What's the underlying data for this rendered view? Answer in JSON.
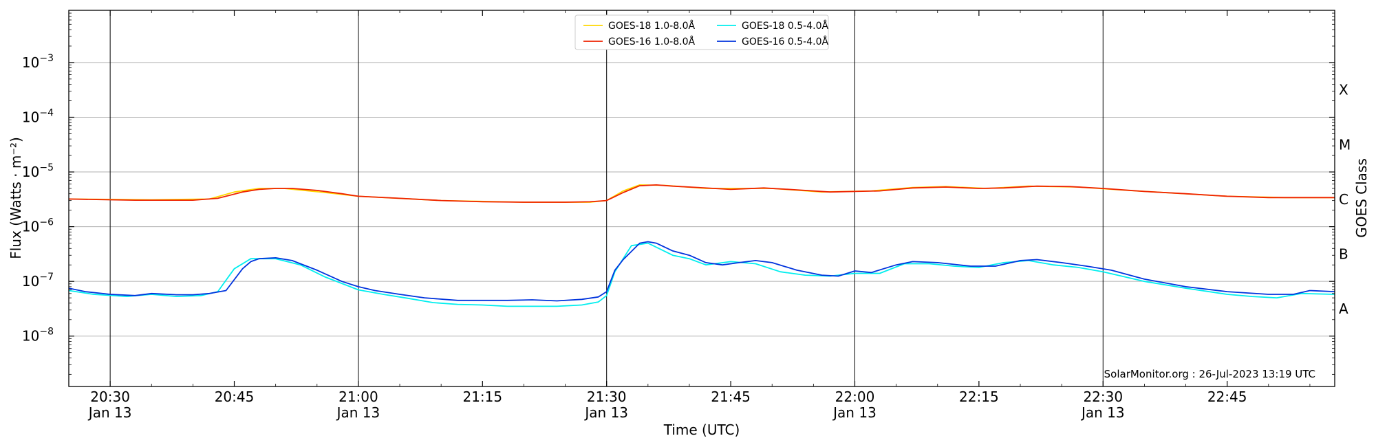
{
  "chart_data": {
    "type": "line",
    "title": "",
    "xlabel": "Time (UTC)",
    "ylabel": "Flux (Watts · m⁻²)",
    "y2label": "GOES Class",
    "yscale": "log",
    "ylim": [
      1.2e-09,
      0.009
    ],
    "xlim": [
      "20:25",
      "22:58"
    ],
    "grid": {
      "horizontal": true,
      "vertical_at_major_ticks": true
    },
    "legend_position": "upper center",
    "x_ticks": [
      {
        "time": "20:30",
        "line1": "20:30",
        "line2": "Jan 13",
        "major": true
      },
      {
        "time": "20:45",
        "line1": "20:45",
        "line2": "",
        "major": false
      },
      {
        "time": "21:00",
        "line1": "21:00",
        "line2": "Jan 13",
        "major": true
      },
      {
        "time": "21:15",
        "line1": "21:15",
        "line2": "",
        "major": false
      },
      {
        "time": "21:30",
        "line1": "21:30",
        "line2": "Jan 13",
        "major": true
      },
      {
        "time": "21:45",
        "line1": "21:45",
        "line2": "",
        "major": false
      },
      {
        "time": "22:00",
        "line1": "22:00",
        "line2": "Jan 13",
        "major": true
      },
      {
        "time": "22:15",
        "line1": "22:15",
        "line2": "",
        "major": false
      },
      {
        "time": "22:30",
        "line1": "22:30",
        "line2": "Jan 13",
        "major": true
      },
      {
        "time": "22:45",
        "line1": "22:45",
        "line2": "",
        "major": false
      }
    ],
    "y_ticks": [
      {
        "value": 1e-08,
        "base": "10",
        "exp": "−8"
      },
      {
        "value": 1e-07,
        "base": "10",
        "exp": "−7"
      },
      {
        "value": 1e-06,
        "base": "10",
        "exp": "−6"
      },
      {
        "value": 1e-05,
        "base": "10",
        "exp": "−5"
      },
      {
        "value": 0.0001,
        "base": "10",
        "exp": "−4"
      },
      {
        "value": 0.001,
        "base": "10",
        "exp": "−3"
      }
    ],
    "class_labels": [
      {
        "label": "A",
        "value": 3.16e-08
      },
      {
        "label": "B",
        "value": 3.16e-07
      },
      {
        "label": "C",
        "value": 3.16e-06
      },
      {
        "label": "M",
        "value": 3.16e-05
      },
      {
        "label": "X",
        "value": 0.000316
      }
    ],
    "series": [
      {
        "name": "GOES-18 1.0-8.0Å",
        "color": "#ffd700",
        "points": [
          [
            "20:25",
            3.2e-06
          ],
          [
            "20:35",
            3.1e-06
          ],
          [
            "20:42",
            3.2e-06
          ],
          [
            "20:45",
            4.3e-06
          ],
          [
            "20:48",
            5e-06
          ],
          [
            "20:51",
            5e-06
          ],
          [
            "20:56",
            4.2e-06
          ],
          [
            "21:00",
            3.6e-06
          ],
          [
            "21:10",
            3e-06
          ],
          [
            "21:20",
            2.8e-06
          ],
          [
            "21:28",
            2.8e-06
          ],
          [
            "21:30",
            3e-06
          ],
          [
            "21:32",
            4.5e-06
          ],
          [
            "21:34",
            5.8e-06
          ],
          [
            "21:37",
            5.7e-06
          ],
          [
            "21:42",
            5e-06
          ],
          [
            "21:50",
            5e-06
          ],
          [
            "21:56",
            4.3e-06
          ],
          [
            "22:02",
            4.5e-06
          ],
          [
            "22:07",
            5.2e-06
          ],
          [
            "22:11",
            5.4e-06
          ],
          [
            "22:16",
            5e-06
          ],
          [
            "22:21",
            5.5e-06
          ],
          [
            "22:27",
            5.3e-06
          ],
          [
            "22:33",
            4.6e-06
          ],
          [
            "22:45",
            3.6e-06
          ],
          [
            "22:52",
            3.4e-06
          ],
          [
            "22:58",
            3.4e-06
          ]
        ]
      },
      {
        "name": "GOES-16 1.0-8.0Å",
        "color": "#ee2200",
        "points": [
          [
            "20:25",
            3.2e-06
          ],
          [
            "20:30",
            3.1e-06
          ],
          [
            "20:33",
            3.05e-06
          ],
          [
            "20:40",
            3.05e-06
          ],
          [
            "20:43",
            3.3e-06
          ],
          [
            "20:46",
            4.3e-06
          ],
          [
            "20:48",
            4.8e-06
          ],
          [
            "20:50",
            5e-06
          ],
          [
            "20:52",
            5e-06
          ],
          [
            "20:55",
            4.6e-06
          ],
          [
            "20:58",
            4e-06
          ],
          [
            "21:00",
            3.6e-06
          ],
          [
            "21:05",
            3.3e-06
          ],
          [
            "21:10",
            3e-06
          ],
          [
            "21:15",
            2.85e-06
          ],
          [
            "21:20",
            2.8e-06
          ],
          [
            "21:25",
            2.8e-06
          ],
          [
            "21:28",
            2.85e-06
          ],
          [
            "21:30",
            3e-06
          ],
          [
            "21:32",
            4.2e-06
          ],
          [
            "21:34",
            5.6e-06
          ],
          [
            "21:36",
            5.8e-06
          ],
          [
            "21:38",
            5.5e-06
          ],
          [
            "21:41",
            5.2e-06
          ],
          [
            "21:45",
            4.8e-06
          ],
          [
            "21:49",
            5.1e-06
          ],
          [
            "21:53",
            4.7e-06
          ],
          [
            "21:57",
            4.3e-06
          ],
          [
            "22:00",
            4.4e-06
          ],
          [
            "22:03",
            4.5e-06
          ],
          [
            "22:07",
            5.1e-06
          ],
          [
            "22:11",
            5.3e-06
          ],
          [
            "22:15",
            5e-06
          ],
          [
            "22:18",
            5.1e-06
          ],
          [
            "22:22",
            5.5e-06
          ],
          [
            "22:26",
            5.4e-06
          ],
          [
            "22:30",
            5e-06
          ],
          [
            "22:35",
            4.4e-06
          ],
          [
            "22:40",
            4e-06
          ],
          [
            "22:45",
            3.6e-06
          ],
          [
            "22:50",
            3.4e-06
          ],
          [
            "22:55",
            3.4e-06
          ],
          [
            "22:58",
            3.4e-06
          ]
        ]
      },
      {
        "name": "GOES-18 0.5-4.0Å",
        "color": "#00eeee",
        "points": [
          [
            "20:25",
            6.8e-08
          ],
          [
            "20:28",
            5.8e-08
          ],
          [
            "20:32",
            5.3e-08
          ],
          [
            "20:35",
            5.8e-08
          ],
          [
            "20:38",
            5.3e-08
          ],
          [
            "20:41",
            5.5e-08
          ],
          [
            "20:43",
            6.5e-08
          ],
          [
            "20:45",
            1.7e-07
          ],
          [
            "20:47",
            2.6e-07
          ],
          [
            "20:50",
            2.6e-07
          ],
          [
            "20:53",
            2e-07
          ],
          [
            "20:56",
            1.2e-07
          ],
          [
            "21:00",
            7e-08
          ],
          [
            "21:03",
            5.8e-08
          ],
          [
            "21:06",
            4.9e-08
          ],
          [
            "21:09",
            4.1e-08
          ],
          [
            "21:12",
            3.8e-08
          ],
          [
            "21:15",
            3.7e-08
          ],
          [
            "21:18",
            3.5e-08
          ],
          [
            "21:21",
            3.5e-08
          ],
          [
            "21:24",
            3.5e-08
          ],
          [
            "21:27",
            3.7e-08
          ],
          [
            "21:29",
            4.2e-08
          ],
          [
            "21:30",
            5.5e-08
          ],
          [
            "21:31",
            1.5e-07
          ],
          [
            "21:33",
            4.5e-07
          ],
          [
            "21:35",
            5e-07
          ],
          [
            "21:38",
            3e-07
          ],
          [
            "21:40",
            2.6e-07
          ],
          [
            "21:42",
            2e-07
          ],
          [
            "21:45",
            2.3e-07
          ],
          [
            "21:48",
            2.1e-07
          ],
          [
            "21:51",
            1.5e-07
          ],
          [
            "21:54",
            1.3e-07
          ],
          [
            "21:57",
            1.25e-07
          ],
          [
            "22:00",
            1.4e-07
          ],
          [
            "22:03",
            1.4e-07
          ],
          [
            "22:06",
            2.1e-07
          ],
          [
            "22:09",
            2.1e-07
          ],
          [
            "22:12",
            1.9e-07
          ],
          [
            "22:15",
            1.8e-07
          ],
          [
            "22:18",
            2.2e-07
          ],
          [
            "22:21",
            2.4e-07
          ],
          [
            "22:24",
            2e-07
          ],
          [
            "22:27",
            1.8e-07
          ],
          [
            "22:30",
            1.5e-07
          ],
          [
            "22:35",
            1e-07
          ],
          [
            "22:40",
            7.5e-08
          ],
          [
            "22:45",
            5.8e-08
          ],
          [
            "22:48",
            5.3e-08
          ],
          [
            "22:51",
            5e-08
          ],
          [
            "22:54",
            6e-08
          ],
          [
            "22:58",
            5.8e-08
          ]
        ]
      },
      {
        "name": "GOES-16 0.5-4.0Å",
        "color": "#0033dd",
        "points": [
          [
            "20:25",
            7.5e-08
          ],
          [
            "20:27",
            6.5e-08
          ],
          [
            "20:30",
            5.8e-08
          ],
          [
            "20:33",
            5.5e-08
          ],
          [
            "20:35",
            6e-08
          ],
          [
            "20:38",
            5.7e-08
          ],
          [
            "20:40",
            5.7e-08
          ],
          [
            "20:42",
            6e-08
          ],
          [
            "20:44",
            6.8e-08
          ],
          [
            "20:46",
            1.7e-07
          ],
          [
            "20:47",
            2.3e-07
          ],
          [
            "20:48",
            2.6e-07
          ],
          [
            "20:50",
            2.7e-07
          ],
          [
            "20:52",
            2.4e-07
          ],
          [
            "20:55",
            1.6e-07
          ],
          [
            "20:58",
            1e-07
          ],
          [
            "21:00",
            8e-08
          ],
          [
            "21:02",
            6.8e-08
          ],
          [
            "21:05",
            5.8e-08
          ],
          [
            "21:08",
            5e-08
          ],
          [
            "21:12",
            4.5e-08
          ],
          [
            "21:15",
            4.5e-08
          ],
          [
            "21:18",
            4.5e-08
          ],
          [
            "21:21",
            4.6e-08
          ],
          [
            "21:24",
            4.4e-08
          ],
          [
            "21:27",
            4.7e-08
          ],
          [
            "21:29",
            5.2e-08
          ],
          [
            "21:30",
            6.5e-08
          ],
          [
            "21:31",
            1.6e-07
          ],
          [
            "21:32",
            2.5e-07
          ],
          [
            "21:34",
            5e-07
          ],
          [
            "21:35",
            5.3e-07
          ],
          [
            "21:36",
            5e-07
          ],
          [
            "21:38",
            3.6e-07
          ],
          [
            "21:40",
            3e-07
          ],
          [
            "21:42",
            2.2e-07
          ],
          [
            "21:44",
            2e-07
          ],
          [
            "21:46",
            2.2e-07
          ],
          [
            "21:48",
            2.4e-07
          ],
          [
            "21:50",
            2.2e-07
          ],
          [
            "21:53",
            1.6e-07
          ],
          [
            "21:56",
            1.3e-07
          ],
          [
            "21:58",
            1.25e-07
          ],
          [
            "22:00",
            1.55e-07
          ],
          [
            "22:02",
            1.45e-07
          ],
          [
            "22:05",
            2e-07
          ],
          [
            "22:07",
            2.3e-07
          ],
          [
            "22:10",
            2.2e-07
          ],
          [
            "22:14",
            1.9e-07
          ],
          [
            "22:17",
            1.9e-07
          ],
          [
            "22:20",
            2.4e-07
          ],
          [
            "22:22",
            2.5e-07
          ],
          [
            "22:25",
            2.2e-07
          ],
          [
            "22:28",
            1.9e-07
          ],
          [
            "22:31",
            1.6e-07
          ],
          [
            "22:35",
            1.1e-07
          ],
          [
            "22:40",
            8e-08
          ],
          [
            "22:45",
            6.5e-08
          ],
          [
            "22:50",
            5.8e-08
          ],
          [
            "22:53",
            5.8e-08
          ],
          [
            "22:55",
            6.8e-08
          ],
          [
            "22:58",
            6.5e-08
          ]
        ]
      }
    ],
    "credit": "SolarMonitor.org : 26-Jul-2023 13:19 UTC"
  }
}
